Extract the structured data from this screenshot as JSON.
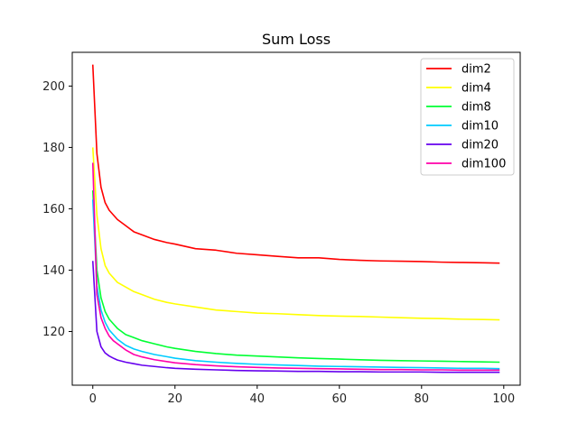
{
  "chart_data": {
    "type": "line",
    "title": "Sum Loss",
    "xlabel": "",
    "ylabel": "",
    "xlim": [
      -5,
      104
    ],
    "ylim": [
      102.5,
      211
    ],
    "xticks": [
      0,
      20,
      40,
      60,
      80,
      100
    ],
    "yticks": [
      120,
      140,
      160,
      180,
      200
    ],
    "grid": false,
    "legend_position": "top-right",
    "series": [
      {
        "name": "dim2",
        "color": "#ff0000",
        "x": [
          0,
          1,
          2,
          3,
          4,
          5,
          6,
          8,
          10,
          12,
          15,
          18,
          20,
          25,
          30,
          35,
          40,
          45,
          50,
          55,
          60,
          65,
          70,
          75,
          80,
          85,
          90,
          95,
          99
        ],
        "y": [
          207,
          178,
          167,
          162,
          159.5,
          158,
          156.5,
          154.5,
          152.5,
          151.5,
          150,
          149,
          148.5,
          147,
          146.5,
          145.5,
          145,
          144.5,
          144,
          144,
          143.5,
          143.2,
          143,
          142.9,
          142.8,
          142.6,
          142.5,
          142.4,
          142.3
        ]
      },
      {
        "name": "dim4",
        "color": "#ffff00",
        "x": [
          0,
          1,
          2,
          3,
          4,
          5,
          6,
          8,
          10,
          12,
          15,
          18,
          20,
          25,
          30,
          35,
          40,
          45,
          50,
          55,
          60,
          65,
          70,
          75,
          80,
          85,
          90,
          95,
          99
        ],
        "y": [
          180,
          158,
          147,
          141.5,
          139,
          137.5,
          136,
          134.5,
          133,
          132,
          130.5,
          129.5,
          129,
          128,
          127,
          126.5,
          126,
          125.8,
          125.5,
          125.2,
          125,
          124.9,
          124.7,
          124.5,
          124.3,
          124.2,
          124,
          123.9,
          123.8
        ]
      },
      {
        "name": "dim8",
        "color": "#00ff33",
        "x": [
          0,
          1,
          2,
          3,
          4,
          5,
          6,
          8,
          10,
          12,
          15,
          18,
          20,
          25,
          30,
          35,
          40,
          45,
          50,
          55,
          60,
          65,
          70,
          75,
          80,
          85,
          90,
          95,
          99
        ],
        "y": [
          166,
          140,
          131,
          126.5,
          124,
          122.5,
          121,
          119,
          118,
          117,
          116,
          115,
          114.5,
          113.5,
          112.8,
          112.3,
          112,
          111.7,
          111.4,
          111.2,
          111,
          110.8,
          110.6,
          110.5,
          110.4,
          110.3,
          110.2,
          110.1,
          110
        ]
      },
      {
        "name": "dim10",
        "color": "#00ccff",
        "x": [
          0,
          1,
          2,
          3,
          4,
          5,
          6,
          8,
          10,
          12,
          15,
          18,
          20,
          25,
          30,
          35,
          40,
          45,
          50,
          55,
          60,
          65,
          70,
          75,
          80,
          85,
          90,
          95,
          99
        ],
        "y": [
          163,
          135,
          127,
          123,
          120.5,
          119,
          117.5,
          115.5,
          114.3,
          113.5,
          112.5,
          111.8,
          111.3,
          110.5,
          110,
          109.6,
          109.3,
          109.1,
          108.9,
          108.7,
          108.6,
          108.5,
          108.4,
          108.3,
          108.2,
          108.1,
          108,
          108,
          107.9
        ]
      },
      {
        "name": "dim20",
        "color": "#6600ee",
        "x": [
          0,
          1,
          2,
          3,
          4,
          5,
          6,
          8,
          10,
          12,
          15,
          18,
          20,
          25,
          30,
          35,
          40,
          45,
          50,
          55,
          60,
          65,
          70,
          75,
          80,
          85,
          90,
          95,
          99
        ],
        "y": [
          143,
          120,
          115,
          113,
          112,
          111.3,
          110.7,
          110,
          109.5,
          109,
          108.6,
          108.2,
          108,
          107.7,
          107.5,
          107.3,
          107.2,
          107.1,
          107,
          107,
          106.9,
          106.9,
          106.8,
          106.8,
          106.8,
          106.7,
          106.7,
          106.7,
          106.7
        ]
      },
      {
        "name": "dim100",
        "color": "#ff00aa",
        "x": [
          0,
          1,
          2,
          3,
          4,
          5,
          6,
          8,
          10,
          12,
          15,
          18,
          20,
          25,
          30,
          35,
          40,
          45,
          50,
          55,
          60,
          65,
          70,
          75,
          80,
          85,
          90,
          95,
          99
        ],
        "y": [
          175,
          132,
          124.5,
          121,
          118.5,
          117,
          116,
          114,
          112.5,
          111.7,
          110.8,
          110.2,
          109.8,
          109.2,
          108.8,
          108.5,
          108.3,
          108.1,
          108,
          107.9,
          107.8,
          107.7,
          107.6,
          107.6,
          107.5,
          107.5,
          107.4,
          107.4,
          107.4
        ]
      }
    ]
  }
}
